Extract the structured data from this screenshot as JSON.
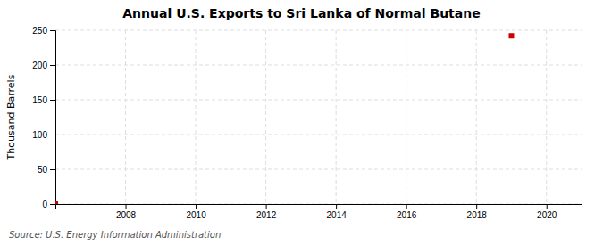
{
  "chart_data": {
    "type": "scatter",
    "title": "Annual U.S. Exports to Sri Lanka of Normal Butane",
    "ylabel": "Thousand Barrels",
    "annotations": [
      "Source: U.S. Energy Information Administration"
    ],
    "x": [
      2006,
      2019
    ],
    "values": [
      0,
      242
    ],
    "color": "#cc0000",
    "marker": "square",
    "xlim": [
      2006.0,
      2021.0
    ],
    "ylim": [
      0,
      250
    ],
    "xticks": [
      2008,
      2010,
      2012,
      2014,
      2016,
      2018,
      2020
    ],
    "yticks": [
      0,
      50,
      100,
      150,
      200,
      250
    ],
    "grid": true
  }
}
